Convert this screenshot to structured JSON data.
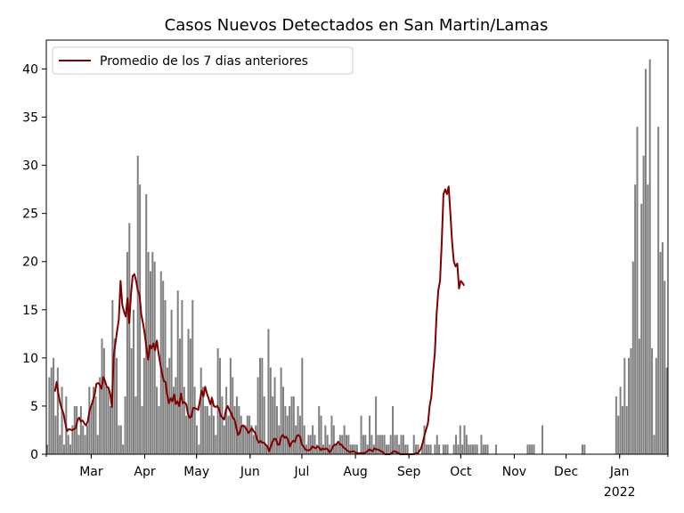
{
  "chart_data": {
    "type": "bar",
    "title": "Casos Nuevos Detectados en San Martin/Lamas",
    "xlabel": "",
    "ylabel": "",
    "ylim": [
      0,
      43
    ],
    "yticks": [
      0,
      5,
      10,
      15,
      20,
      25,
      30,
      35,
      40
    ],
    "x_range_days": [
      0,
      360
    ],
    "xticks": [
      {
        "day": 26,
        "label": "Mar"
      },
      {
        "day": 57,
        "label": "Apr"
      },
      {
        "day": 87,
        "label": "May"
      },
      {
        "day": 118,
        "label": "Jun"
      },
      {
        "day": 148,
        "label": "Jul"
      },
      {
        "day": 179,
        "label": "Aug"
      },
      {
        "day": 210,
        "label": "Sep"
      },
      {
        "day": 240,
        "label": "Oct"
      },
      {
        "day": 271,
        "label": "Nov"
      },
      {
        "day": 301,
        "label": "Dec"
      },
      {
        "day": 332,
        "label": "Jan",
        "sublabel": "2022"
      }
    ],
    "bar_color": "#808080",
    "line_color": "#800000",
    "bars_daily_cases": [
      1,
      8,
      9,
      10,
      4,
      9,
      2,
      7,
      1,
      6,
      2,
      1,
      3,
      5,
      5,
      2,
      5,
      3,
      2,
      3,
      7,
      5,
      7,
      6,
      2,
      8,
      12,
      11,
      7,
      7,
      5,
      16,
      12,
      10,
      3,
      3,
      1,
      6,
      21,
      24,
      11,
      15,
      6,
      31,
      28,
      5,
      10,
      27,
      21,
      19,
      21,
      20,
      7,
      5,
      19,
      18,
      16,
      9,
      10,
      15,
      7,
      8,
      17,
      12,
      16,
      7,
      4,
      13,
      12,
      16,
      7,
      3,
      1,
      9,
      7,
      5,
      5,
      4,
      6,
      4,
      2,
      11,
      10,
      6,
      3,
      7,
      4,
      10,
      8,
      5,
      6,
      5,
      4,
      3,
      3,
      4,
      4,
      3,
      2,
      3,
      8,
      10,
      10,
      6,
      1,
      13,
      9,
      6,
      8,
      5,
      3,
      9,
      7,
      5,
      4,
      5,
      6,
      6,
      3,
      5,
      4,
      10,
      3,
      1,
      2,
      2,
      3,
      2,
      1,
      5,
      4,
      1,
      3,
      2,
      1,
      4,
      3,
      1,
      1,
      2,
      2,
      3,
      2,
      2,
      1,
      1,
      1,
      1,
      0,
      4,
      2,
      2,
      1,
      4,
      2,
      1,
      6,
      2,
      2,
      2,
      2,
      1,
      1,
      2,
      5,
      2,
      2,
      1,
      2,
      2,
      1,
      1,
      0,
      0,
      2,
      1,
      1,
      0,
      1,
      3,
      1,
      1,
      1,
      0,
      1,
      2,
      1,
      0,
      1,
      1,
      1,
      0,
      0,
      1,
      2,
      1,
      3,
      1,
      3,
      2,
      1,
      1,
      1,
      1,
      1,
      0,
      2,
      1,
      1,
      1,
      0,
      0,
      0,
      1,
      0,
      0,
      0,
      0,
      0,
      0,
      0,
      0,
      0,
      0,
      0,
      0,
      0,
      0,
      1,
      1,
      1,
      1,
      0,
      0,
      0,
      3,
      0,
      0,
      0,
      0,
      0,
      0,
      0,
      0,
      0,
      0,
      0,
      0,
      0,
      0,
      0,
      0,
      0,
      0,
      1,
      1,
      0,
      0,
      0,
      0,
      0,
      0,
      0,
      0,
      0,
      0,
      0,
      0,
      0,
      0,
      6,
      4,
      7,
      5,
      10,
      5,
      10,
      11,
      20,
      28,
      34,
      12,
      26,
      31,
      40,
      28,
      41,
      11,
      2,
      10,
      34,
      21,
      22,
      18,
      9
    ],
    "series": [
      {
        "name": "Promedio de los 7 dias anteriores",
        "type": "line",
        "points": [
          [
            5,
            6.5
          ],
          [
            6,
            7.5
          ],
          [
            7,
            6.3
          ],
          [
            8,
            5.3
          ],
          [
            9,
            4.7
          ],
          [
            10,
            4.2
          ],
          [
            11,
            3.2
          ],
          [
            12,
            2.4
          ],
          [
            13,
            2.6
          ],
          [
            15,
            2.5
          ],
          [
            17,
            2.7
          ],
          [
            18,
            3.5
          ],
          [
            19,
            3.8
          ],
          [
            20,
            3.4
          ],
          [
            21,
            3.5
          ],
          [
            22,
            3.2
          ],
          [
            23,
            3.0
          ],
          [
            24,
            3.4
          ],
          [
            25,
            4.5
          ],
          [
            26,
            5.0
          ],
          [
            27,
            5.6
          ],
          [
            28,
            6.2
          ],
          [
            29,
            7.3
          ],
          [
            30,
            7.4
          ],
          [
            31,
            7.2
          ],
          [
            32,
            6.8
          ],
          [
            33,
            8.0
          ],
          [
            34,
            7.6
          ],
          [
            35,
            7.0
          ],
          [
            36,
            6.9
          ],
          [
            37,
            6.3
          ],
          [
            38,
            4.9
          ],
          [
            39,
            10.2
          ],
          [
            40,
            11.5
          ],
          [
            41,
            12.8
          ],
          [
            42,
            14.0
          ],
          [
            43,
            18.0
          ],
          [
            44,
            15.5
          ],
          [
            45,
            14.8
          ],
          [
            46,
            14.3
          ],
          [
            47,
            16.2
          ],
          [
            48,
            13.6
          ],
          [
            49,
            16.5
          ],
          [
            50,
            18.5
          ],
          [
            51,
            18.7
          ],
          [
            52,
            18.0
          ],
          [
            53,
            17.0
          ],
          [
            54,
            16.5
          ],
          [
            55,
            14.5
          ],
          [
            56,
            13.6
          ],
          [
            57,
            12.5
          ],
          [
            58,
            11.0
          ],
          [
            59,
            9.8
          ],
          [
            60,
            11.3
          ],
          [
            61,
            11.0
          ],
          [
            62,
            11.5
          ],
          [
            63,
            10.8
          ],
          [
            64,
            11.8
          ],
          [
            65,
            10.5
          ],
          [
            66,
            9.4
          ],
          [
            67,
            8.4
          ],
          [
            68,
            7.6
          ],
          [
            69,
            7.5
          ],
          [
            70,
            6.2
          ],
          [
            71,
            5.3
          ],
          [
            72,
            5.8
          ],
          [
            73,
            5.5
          ],
          [
            74,
            6.2
          ],
          [
            75,
            5.2
          ],
          [
            76,
            5.5
          ],
          [
            77,
            5.0
          ],
          [
            78,
            6.3
          ],
          [
            79,
            5.3
          ],
          [
            80,
            5.4
          ],
          [
            81,
            5.2
          ],
          [
            82,
            4.2
          ],
          [
            83,
            3.8
          ],
          [
            84,
            3.9
          ],
          [
            85,
            4.8
          ],
          [
            86,
            4.8
          ],
          [
            87,
            4.7
          ],
          [
            88,
            4.6
          ],
          [
            89,
            5.6
          ],
          [
            90,
            6.6
          ],
          [
            91,
            6.0
          ],
          [
            92,
            7.0
          ],
          [
            93,
            6.3
          ],
          [
            94,
            5.8
          ],
          [
            95,
            5.2
          ],
          [
            96,
            5.8
          ],
          [
            97,
            5.0
          ],
          [
            98,
            4.9
          ],
          [
            99,
            5.0
          ],
          [
            100,
            4.7
          ],
          [
            101,
            4.0
          ],
          [
            102,
            3.8
          ],
          [
            103,
            3.6
          ],
          [
            104,
            4.6
          ],
          [
            105,
            5.0
          ],
          [
            106,
            4.6
          ],
          [
            107,
            4.3
          ],
          [
            108,
            3.8
          ],
          [
            109,
            3.6
          ],
          [
            110,
            2.8
          ],
          [
            111,
            2.0
          ],
          [
            112,
            2.2
          ],
          [
            113,
            2.9
          ],
          [
            114,
            3.0
          ],
          [
            115,
            2.8
          ],
          [
            116,
            2.6
          ],
          [
            117,
            2.2
          ],
          [
            118,
            2.4
          ],
          [
            119,
            2.7
          ],
          [
            120,
            2.4
          ],
          [
            121,
            2.2
          ],
          [
            122,
            1.6
          ],
          [
            123,
            1.2
          ],
          [
            124,
            1.4
          ],
          [
            125,
            1.2
          ],
          [
            126,
            1.2
          ],
          [
            127,
            1.0
          ],
          [
            128,
            0.8
          ],
          [
            129,
            0.3
          ],
          [
            130,
            0.8
          ],
          [
            131,
            1.3
          ],
          [
            132,
            1.6
          ],
          [
            133,
            1.6
          ],
          [
            134,
            1.0
          ],
          [
            135,
            1.0
          ],
          [
            136,
            1.8
          ],
          [
            137,
            2.0
          ],
          [
            138,
            1.7
          ],
          [
            139,
            1.8
          ],
          [
            140,
            1.5
          ],
          [
            141,
            0.8
          ],
          [
            142,
            1.2
          ],
          [
            143,
            1.4
          ],
          [
            144,
            1.3
          ],
          [
            145,
            1.9
          ],
          [
            146,
            2.0
          ],
          [
            147,
            1.8
          ],
          [
            148,
            1.0
          ],
          [
            149,
            0.8
          ],
          [
            150,
            0.5
          ],
          [
            151,
            0.4
          ],
          [
            152,
            0.4
          ],
          [
            153,
            0.5
          ],
          [
            154,
            0.8
          ],
          [
            155,
            0.7
          ],
          [
            156,
            0.6
          ],
          [
            157,
            0.8
          ],
          [
            158,
            0.7
          ],
          [
            159,
            0.4
          ],
          [
            160,
            0.6
          ],
          [
            161,
            0.5
          ],
          [
            162,
            0.6
          ],
          [
            163,
            0.5
          ],
          [
            164,
            0.2
          ],
          [
            165,
            0.4
          ],
          [
            166,
            0.8
          ],
          [
            167,
            1.0
          ],
          [
            168,
            1.0
          ],
          [
            169,
            1.3
          ],
          [
            170,
            1.0
          ],
          [
            171,
            1.0
          ],
          [
            172,
            0.7
          ],
          [
            173,
            0.6
          ],
          [
            174,
            0.4
          ],
          [
            175,
            0.3
          ],
          [
            176,
            0.2
          ],
          [
            177,
            0.3
          ],
          [
            178,
            0.3
          ],
          [
            179,
            0.2
          ],
          [
            180,
            0.1
          ],
          [
            181,
            0.1
          ],
          [
            182,
            0.1
          ],
          [
            183,
            0.1
          ],
          [
            184,
            0.1
          ],
          [
            185,
            0.2
          ],
          [
            186,
            0.3
          ],
          [
            187,
            0.5
          ],
          [
            188,
            0.4
          ],
          [
            189,
            0.3
          ],
          [
            190,
            0.6
          ],
          [
            191,
            0.5
          ],
          [
            192,
            0.5
          ],
          [
            193,
            0.4
          ],
          [
            194,
            0.3
          ],
          [
            195,
            0.2
          ],
          [
            196,
            0.0
          ],
          [
            197,
            0.0
          ],
          [
            198,
            0.0
          ],
          [
            199,
            0.0
          ],
          [
            200,
            0.1
          ],
          [
            201,
            0.3
          ],
          [
            202,
            0.3
          ],
          [
            203,
            0.2
          ],
          [
            204,
            0.1
          ],
          [
            205,
            0.0
          ],
          [
            206,
            0.0
          ],
          [
            207,
            0.0
          ],
          [
            208,
            0.0
          ],
          [
            209,
            0.0
          ],
          [
            210,
            0.0
          ],
          [
            211,
            0.0
          ],
          [
            212,
            0.0
          ],
          [
            213,
            0.0
          ],
          [
            214,
            0.1
          ],
          [
            215,
            0.1
          ],
          [
            216,
            0.3
          ],
          [
            217,
            0.6
          ],
          [
            218,
            1.2
          ],
          [
            219,
            2.0
          ],
          [
            220,
            2.6
          ],
          [
            221,
            3.2
          ],
          [
            222,
            5.0
          ],
          [
            223,
            6.0
          ],
          [
            224,
            8.5
          ],
          [
            225,
            10.5
          ],
          [
            226,
            14.5
          ],
          [
            227,
            17.0
          ],
          [
            228,
            18.0
          ],
          [
            229,
            22.0
          ],
          [
            230,
            27.0
          ],
          [
            231,
            27.5
          ],
          [
            232,
            27.0
          ],
          [
            233,
            27.8
          ],
          [
            234,
            25.0
          ],
          [
            235,
            22.0
          ],
          [
            236,
            20.0
          ],
          [
            237,
            19.5
          ],
          [
            238,
            19.8
          ],
          [
            239,
            17.2
          ],
          [
            240,
            18.0
          ],
          [
            241,
            17.8
          ],
          [
            242,
            17.5
          ]
        ]
      }
    ],
    "legend": {
      "position": "top-left",
      "entries": [
        "Promedio de los 7 dias anteriores"
      ]
    }
  }
}
